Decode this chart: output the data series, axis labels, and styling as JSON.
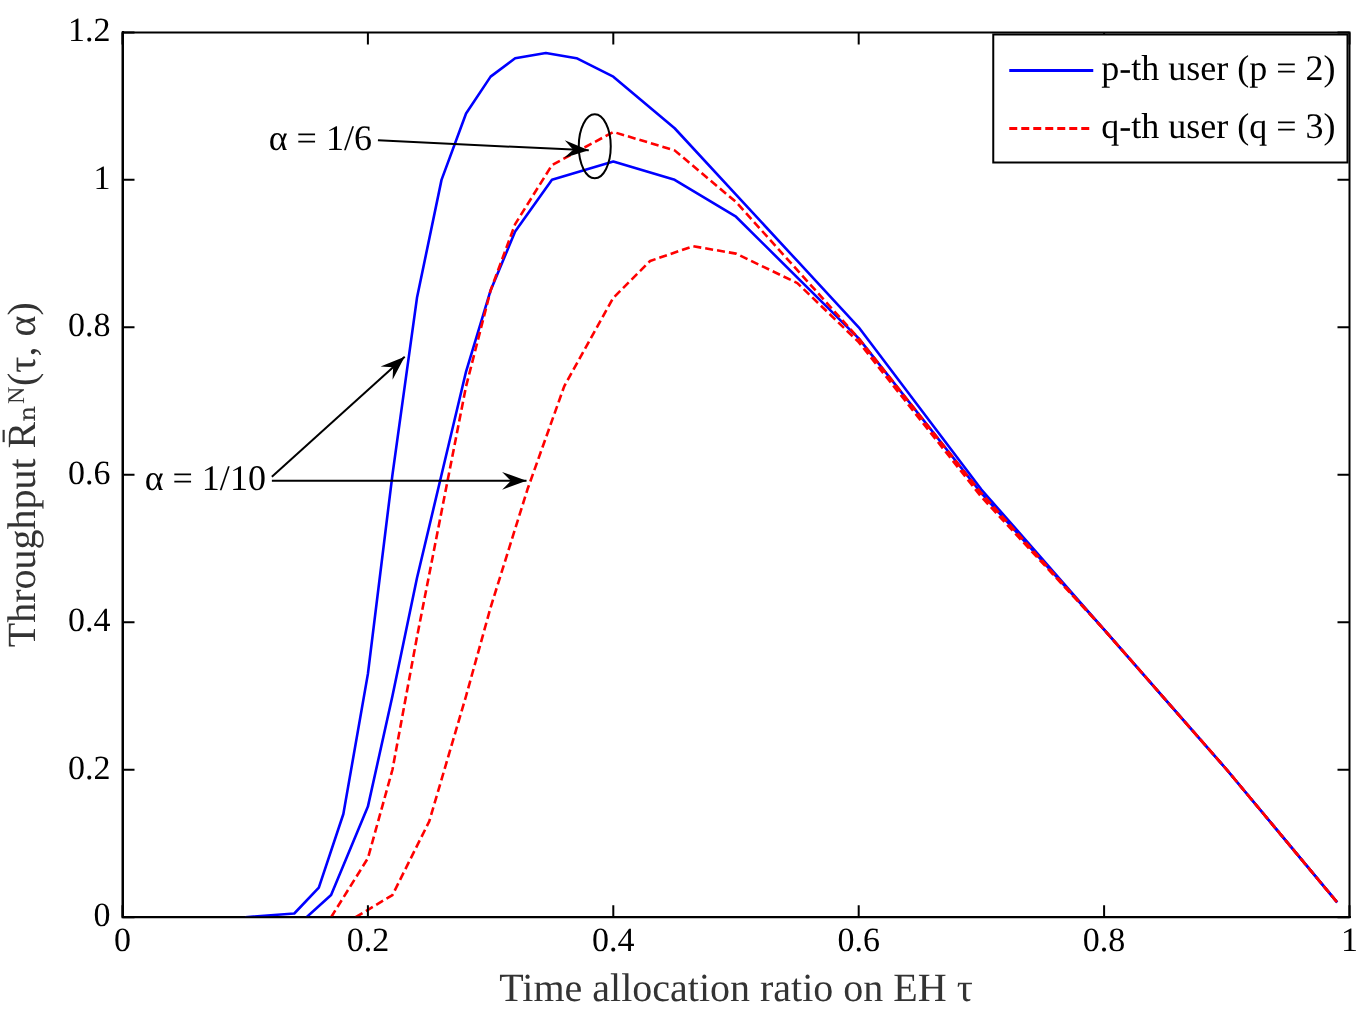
{
  "chart_data": {
    "type": "line",
    "xlabel": "Time allocation ratio on EH τ",
    "ylabel": "Throughput R̄ₙᴺ(τ, α)",
    "xlim": [
      0,
      1
    ],
    "xticks": [
      0,
      0.2,
      0.4,
      0.6,
      0.8,
      1
    ],
    "ylim": [
      0,
      1.2
    ],
    "yticks": [
      0,
      0.2,
      0.4,
      0.6,
      0.8,
      1,
      1.2
    ],
    "grid": false,
    "legend": "top right",
    "marker": "none",
    "series": [
      {
        "name": "p-th user (p = 2)",
        "color": "#0000ff",
        "line_style": "solid",
        "x": [
          0.1,
          0.14,
          0.16,
          0.18,
          0.2,
          0.22,
          0.24,
          0.26,
          0.28,
          0.3,
          0.32,
          0.345,
          0.37,
          0.4,
          0.45,
          0.5,
          0.55,
          0.6,
          0.7,
          0.8,
          0.9,
          0.99
        ],
        "values": [
          0,
          0.005,
          0.04,
          0.14,
          0.33,
          0.6,
          0.84,
          1.0,
          1.09,
          1.14,
          1.165,
          1.172,
          1.165,
          1.14,
          1.07,
          0.98,
          0.89,
          0.8,
          0.58,
          0.39,
          0.2,
          0.02
        ]
      },
      {
        "name": "q-th user (q = 3)",
        "color": "#ff0000",
        "line_style": "dashed",
        "x": [
          0.17,
          0.2,
          0.22,
          0.24,
          0.26,
          0.28,
          0.3,
          0.32,
          0.35,
          0.4,
          0.45,
          0.5,
          0.6,
          0.7,
          0.8,
          0.9,
          0.99
        ],
        "values": [
          0,
          0.08,
          0.2,
          0.38,
          0.55,
          0.72,
          0.85,
          0.94,
          1.02,
          1.065,
          1.04,
          0.97,
          0.785,
          0.575,
          0.39,
          0.2,
          0.02
        ]
      },
      {
        "color": "#0000ff",
        "line_style": "solid",
        "x": [
          0.15,
          0.17,
          0.2,
          0.22,
          0.24,
          0.26,
          0.28,
          0.3,
          0.32,
          0.35,
          0.4,
          0.45,
          0.5,
          0.6,
          0.7,
          0.8,
          0.9,
          0.99
        ],
        "values": [
          0,
          0.03,
          0.15,
          0.3,
          0.46,
          0.6,
          0.74,
          0.85,
          0.93,
          1.0,
          1.025,
          1.0,
          0.95,
          0.785,
          0.575,
          0.39,
          0.2,
          0.02
        ]
      },
      {
        "color": "#ff0000",
        "line_style": "dashed",
        "x": [
          0.19,
          0.22,
          0.25,
          0.28,
          0.3,
          0.33,
          0.36,
          0.4,
          0.43,
          0.465,
          0.5,
          0.55,
          0.6,
          0.7,
          0.8,
          0.9,
          0.99
        ],
        "values": [
          0,
          0.03,
          0.13,
          0.3,
          0.42,
          0.58,
          0.72,
          0.84,
          0.89,
          0.91,
          0.9,
          0.86,
          0.78,
          0.57,
          0.39,
          0.2,
          0.02
        ]
      }
    ],
    "annotations": [
      {
        "text": "α = 1/6",
        "x": 0.38,
        "y": 1.04
      },
      {
        "text": "α = 1/10",
        "x": 0.23,
        "y": 0.76
      }
    ]
  }
}
